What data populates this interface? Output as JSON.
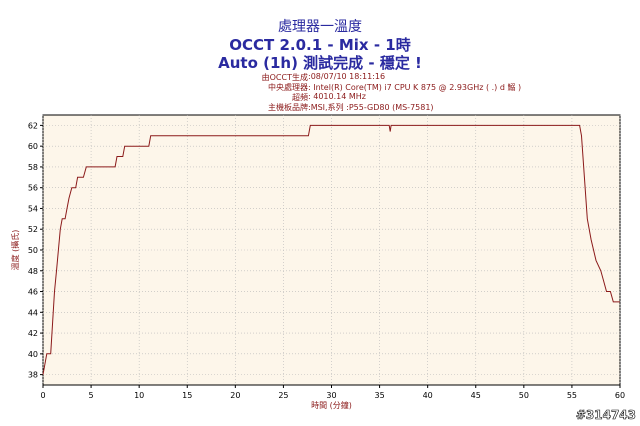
{
  "header": {
    "title1": "處理器一溫度",
    "title2": "OCCT 2.0.1 - Mix - 1時",
    "title3": "Auto (1h) 測試完成 - 穩定 !"
  },
  "info": [
    {
      "key": "由OCCT生成",
      "value": ":08/07/10 18:11:16"
    },
    {
      "key": "中央處理器",
      "value": ": Intel(R) Core(TM) i7 CPU K 875 @ 2.93GHz (  .) d    鰯   )"
    },
    {
      "key": "超頻",
      "value": ": 4010.14 MHz"
    },
    {
      "key": "主機板品牌",
      "value": ":MSI,系列 :P55-GD80 (MS-7581)"
    }
  ],
  "watermark": "#314743",
  "chart_data": {
    "type": "line",
    "xlabel": "時間 (分鐘)",
    "ylabel": "溫度 (攝氏)",
    "xlim": [
      0,
      60
    ],
    "ylim": [
      37,
      63
    ],
    "xticks": [
      0,
      5,
      10,
      15,
      20,
      25,
      30,
      35,
      40,
      45,
      50,
      55,
      60
    ],
    "yticks": [
      38,
      40,
      42,
      44,
      46,
      48,
      50,
      52,
      54,
      56,
      58,
      60,
      62
    ],
    "grid": true,
    "background": "#fdf6ea",
    "line_color": "#8b1a1a",
    "series": [
      {
        "values": [
          [
            0,
            38
          ],
          [
            0.2,
            39
          ],
          [
            0.4,
            40
          ],
          [
            0.8,
            40
          ],
          [
            1.0,
            43
          ],
          [
            1.2,
            46
          ],
          [
            1.4,
            48
          ],
          [
            1.6,
            50
          ],
          [
            1.8,
            52
          ],
          [
            2.0,
            53
          ],
          [
            2.3,
            53
          ],
          [
            2.5,
            54
          ],
          [
            2.7,
            55
          ],
          [
            3.0,
            56
          ],
          [
            3.4,
            56
          ],
          [
            3.6,
            57
          ],
          [
            4.2,
            57
          ],
          [
            4.5,
            58
          ],
          [
            7.5,
            58
          ],
          [
            7.7,
            59
          ],
          [
            8.3,
            59
          ],
          [
            8.5,
            60
          ],
          [
            11.0,
            60
          ],
          [
            11.2,
            61
          ],
          [
            27.6,
            61
          ],
          [
            27.8,
            62
          ],
          [
            36.0,
            62
          ],
          [
            36.1,
            61.4
          ],
          [
            36.2,
            62
          ],
          [
            55.8,
            62
          ],
          [
            56.0,
            61
          ],
          [
            56.3,
            57
          ],
          [
            56.6,
            53
          ],
          [
            57.0,
            51
          ],
          [
            57.5,
            49
          ],
          [
            58.0,
            48
          ],
          [
            58.3,
            47
          ],
          [
            58.6,
            46
          ],
          [
            59.0,
            46
          ],
          [
            59.3,
            45
          ],
          [
            60,
            45
          ]
        ]
      }
    ]
  }
}
